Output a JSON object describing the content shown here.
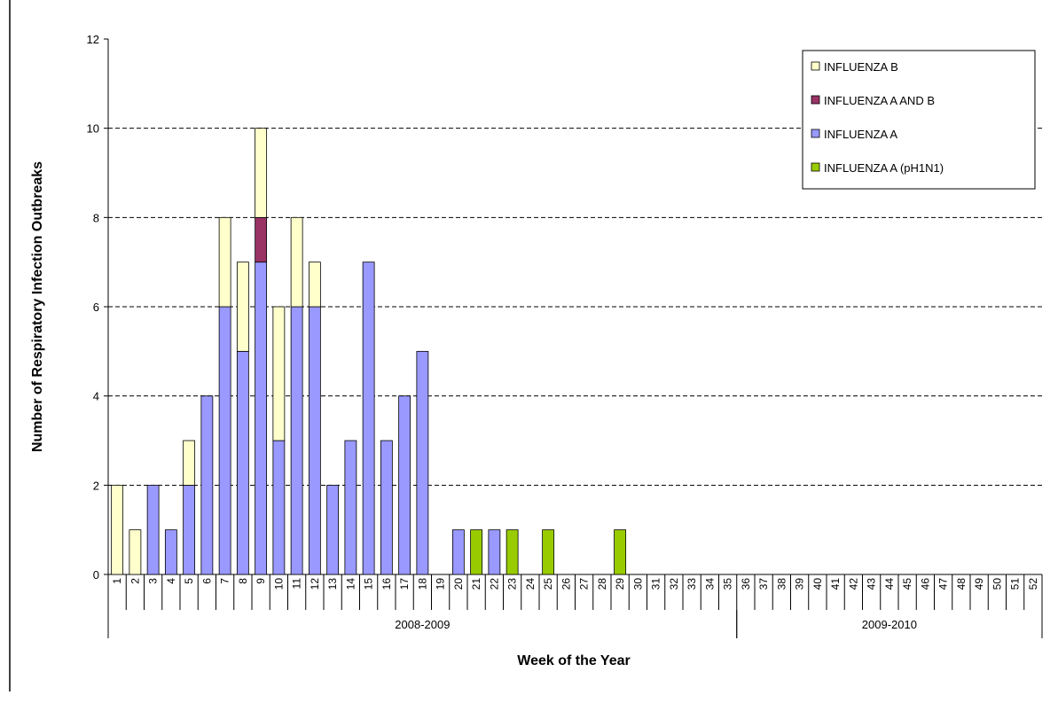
{
  "chart_data": {
    "type": "stacked_bar",
    "y_label": "Number of Respiratory Infection Outbreaks",
    "x_label": "Week of the Year",
    "categories": [
      "1",
      "2",
      "3",
      "4",
      "5",
      "6",
      "7",
      "8",
      "9",
      "10",
      "11",
      "12",
      "13",
      "14",
      "15",
      "16",
      "17",
      "18",
      "19",
      "20",
      "21",
      "22",
      "23",
      "24",
      "25",
      "26",
      "27",
      "28",
      "29",
      "30",
      "31",
      "32",
      "33",
      "34",
      "35",
      "36",
      "37",
      "38",
      "39",
      "40",
      "41",
      "42",
      "43",
      "44",
      "45",
      "46",
      "47",
      "48",
      "49",
      "50",
      "51",
      "52"
    ],
    "groups": [
      {
        "label": "2008-2009",
        "first": "1",
        "last": "35"
      },
      {
        "label": "2009-2010",
        "first": "36",
        "last": "52"
      }
    ],
    "series": [
      {
        "name": "INFLUENZA B",
        "color": "#ffffcc",
        "values": [
          2,
          1,
          0,
          0,
          1,
          0,
          2,
          2,
          2,
          3,
          2,
          1,
          0,
          0,
          0,
          0,
          0,
          0,
          0,
          0,
          0,
          0,
          0,
          0,
          0,
          0,
          0,
          0,
          0,
          0,
          0,
          0,
          0,
          0,
          0,
          0,
          0,
          0,
          0,
          0,
          0,
          0,
          0,
          0,
          0,
          0,
          0,
          0,
          0,
          0,
          0,
          0
        ]
      },
      {
        "name": "INFLUENZA A AND B",
        "color": "#993366",
        "values": [
          0,
          0,
          0,
          0,
          0,
          0,
          0,
          0,
          1,
          0,
          0,
          0,
          0,
          0,
          0,
          0,
          0,
          0,
          0,
          0,
          0,
          0,
          0,
          0,
          0,
          0,
          0,
          0,
          0,
          0,
          0,
          0,
          0,
          0,
          0,
          0,
          0,
          0,
          0,
          0,
          0,
          0,
          0,
          0,
          0,
          0,
          0,
          0,
          0,
          0,
          0,
          0
        ]
      },
      {
        "name": "INFLUENZA A",
        "color": "#9999ff",
        "values": [
          0,
          0,
          2,
          1,
          2,
          4,
          6,
          5,
          7,
          3,
          6,
          6,
          2,
          3,
          7,
          3,
          4,
          5,
          0,
          1,
          0,
          1,
          0,
          0,
          0,
          0,
          0,
          0,
          0,
          0,
          0,
          0,
          0,
          0,
          0,
          0,
          0,
          0,
          0,
          0,
          0,
          0,
          0,
          0,
          0,
          0,
          0,
          0,
          0,
          0,
          0,
          0
        ]
      },
      {
        "name": "INFLUENZA A (pH1N1)",
        "color": "#99cc00",
        "values": [
          0,
          0,
          0,
          0,
          0,
          0,
          0,
          0,
          0,
          0,
          0,
          0,
          0,
          0,
          0,
          0,
          0,
          0,
          0,
          0,
          1,
          0,
          1,
          0,
          1,
          0,
          0,
          0,
          1,
          0,
          0,
          0,
          0,
          0,
          0,
          0,
          0,
          0,
          0,
          0,
          0,
          0,
          0,
          0,
          0,
          0,
          0,
          0,
          0,
          0,
          0,
          0
        ]
      }
    ],
    "ylim": [
      0,
      12
    ],
    "yticks": [
      0,
      2,
      4,
      6,
      8,
      10,
      12
    ],
    "grid": true,
    "legend": "upper right"
  }
}
